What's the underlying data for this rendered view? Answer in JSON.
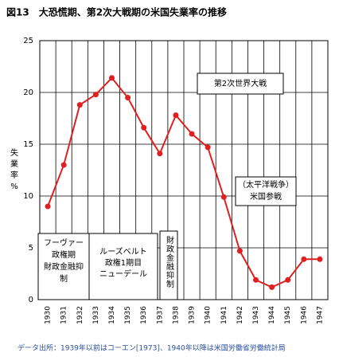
{
  "chart_data": {
    "type": "line",
    "title": "図13　大恐慌期、第2次大戦期の米国失業率の推移",
    "y_label": [
      "失",
      "業",
      "率",
      "%"
    ],
    "categories": [
      "1930",
      "1931",
      "1932",
      "1933",
      "1934",
      "1935",
      "1936",
      "1937",
      "1938",
      "1939",
      "1940",
      "1941",
      "1942",
      "1943",
      "1944",
      "1945",
      "1946",
      "1947"
    ],
    "values": [
      9.0,
      13.0,
      18.8,
      19.8,
      21.4,
      19.5,
      16.6,
      14.1,
      17.8,
      16.0,
      14.7,
      9.9,
      4.7,
      1.9,
      1.2,
      1.9,
      3.9,
      3.9
    ],
    "color": "#e02020",
    "ylim": [
      0,
      25
    ],
    "yticks": [
      0,
      5,
      10,
      15,
      20,
      25
    ],
    "grid": true,
    "annotations": [
      {
        "lines": [
          "フーヴァー",
          "政権期",
          "財政金融抑",
          "制"
        ]
      },
      {
        "lines": [
          "ルーズベルト",
          "政権1期目",
          "ニューデール"
        ]
      },
      {
        "lines": [
          "財政金融抑制"
        ]
      },
      {
        "lines": [
          "第2次世界大戦"
        ]
      },
      {
        "lines": [
          "（太平洋戦争）",
          "米国参戦"
        ]
      }
    ],
    "source": "データ出所：1939年以前はコーエン[1973]、1940年以降は米国労働省労働統計局"
  }
}
